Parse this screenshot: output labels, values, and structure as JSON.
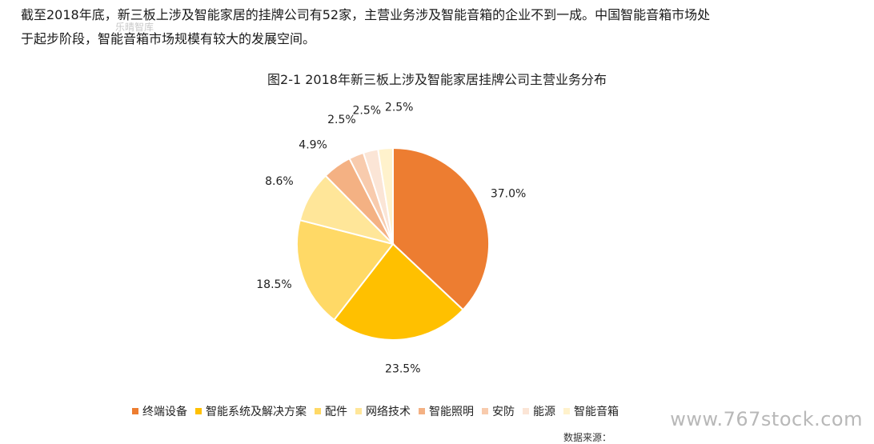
{
  "paragraph": {
    "line1": "截至2018年底，新三板上涉及智能家居的挂牌公司有52家，主营业务涉及智能音箱的企业不到一成。中国智能音箱市场处",
    "line2": "于起步阶段，智能音箱市场规模有较大的发展空间。"
  },
  "watermark_small": "乐晴智库",
  "watermark_big": "www.767stock.com",
  "source_partial": "数据来源：",
  "chart_data": {
    "type": "pie",
    "title": "图2-1 2018年新三板上涉及智能家居挂牌公司主营业务分布",
    "categories": [
      "终端设备",
      "智能系统及解决方案",
      "配件",
      "网络技术",
      "智能照明",
      "安防",
      "能源",
      "智能音箱"
    ],
    "values": [
      37.0,
      23.5,
      18.5,
      8.6,
      4.9,
      2.5,
      2.5,
      2.5
    ],
    "labels": [
      "37.0%",
      "23.5%",
      "18.5%",
      "8.6%",
      "4.9%",
      "2.5%",
      "2.5%",
      "2.5%"
    ],
    "colors": [
      "#ED7D31",
      "#FFC000",
      "#FFD966",
      "#FFE699",
      "#F4B183",
      "#F8CBAD",
      "#FBE5D6",
      "#FFF2CC"
    ],
    "start": "12 o'clock",
    "direction": "clockwise",
    "legend_position": "bottom"
  }
}
